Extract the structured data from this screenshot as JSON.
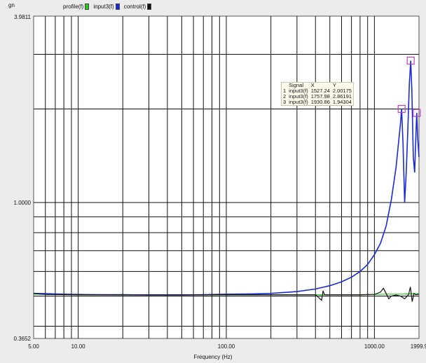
{
  "y_axis_label": "gn",
  "legend": [
    {
      "label": "profile(f)",
      "color": "#22cc22"
    },
    {
      "label": "input3(f)",
      "color": "#1a2ad6"
    },
    {
      "label": "control(f)",
      "color": "#111111"
    }
  ],
  "cursor_table": {
    "headers": [
      "",
      "Signal",
      "X",
      "Y"
    ],
    "rows": [
      [
        "1",
        "input3(f)",
        "1527.24",
        "2.00175"
      ],
      [
        "2",
        "input3(f)",
        "1757.98",
        "2.86191"
      ],
      [
        "3",
        "input3(f)",
        "1930.86",
        "1.94304"
      ]
    ]
  },
  "chart_data": {
    "type": "line",
    "xlabel": "Frequency (Hz)",
    "ylabel": "gn",
    "x_scale": "log",
    "y_scale": "log",
    "xlim": [
      5.0,
      1999.9
    ],
    "ylim": [
      0.3652,
      3.9811
    ],
    "x_tick_labels": [
      "5.00",
      "10.00",
      "100.00",
      "1000.00",
      "1999.9"
    ],
    "y_tick_labels": [
      "0.3652",
      "1.0000",
      "3.9811"
    ],
    "grid": true,
    "legend_position": "top-left",
    "series": [
      {
        "name": "profile(f)",
        "color": "#22cc22",
        "x": [
          5,
          10,
          20,
          50,
          100,
          200,
          500,
          800,
          1000,
          1200,
          1500,
          1700,
          1999.9
        ],
        "y": [
          0.507,
          0.505,
          0.504,
          0.505,
          0.505,
          0.505,
          0.505,
          0.505,
          0.506,
          0.507,
          0.507,
          0.508,
          0.509
        ]
      },
      {
        "name": "input3(f)",
        "color": "#1a2ad6",
        "x": [
          5,
          6,
          8,
          10,
          15,
          20,
          30,
          50,
          70,
          100,
          150,
          200,
          300,
          400,
          500,
          600,
          700,
          800,
          900,
          1000,
          1100,
          1200,
          1300,
          1400,
          1500,
          1527.24,
          1560,
          1600,
          1640,
          1680,
          1720,
          1757.98,
          1790,
          1830,
          1870,
          1910,
          1930.86,
          1960,
          1999.9
        ],
        "y": [
          0.51,
          0.509,
          0.507,
          0.506,
          0.505,
          0.505,
          0.504,
          0.504,
          0.505,
          0.507,
          0.508,
          0.51,
          0.517,
          0.527,
          0.54,
          0.556,
          0.575,
          0.6,
          0.632,
          0.68,
          0.74,
          0.84,
          1.02,
          1.3,
          1.8,
          2.00175,
          1.55,
          1.0,
          1.25,
          1.7,
          2.4,
          2.86191,
          2.3,
          1.4,
          1.25,
          1.7,
          1.94304,
          1.6,
          1.4
        ]
      },
      {
        "name": "control(f)",
        "color": "#111111",
        "x": [
          5,
          6,
          10,
          20,
          50,
          100,
          200,
          300,
          400,
          440,
          450,
          460,
          500,
          600,
          800,
          1000,
          1100,
          1150,
          1200,
          1250,
          1300,
          1400,
          1500,
          1600,
          1700,
          1750,
          1800,
          1850,
          1900,
          1999.9
        ],
        "y": [
          0.51,
          0.506,
          0.505,
          0.505,
          0.505,
          0.505,
          0.505,
          0.505,
          0.505,
          0.485,
          0.52,
          0.505,
          0.505,
          0.505,
          0.505,
          0.506,
          0.515,
          0.53,
          0.51,
          0.49,
          0.5,
          0.504,
          0.5,
          0.49,
          0.505,
          0.535,
          0.48,
          0.51,
          0.505,
          0.507
        ]
      }
    ]
  }
}
